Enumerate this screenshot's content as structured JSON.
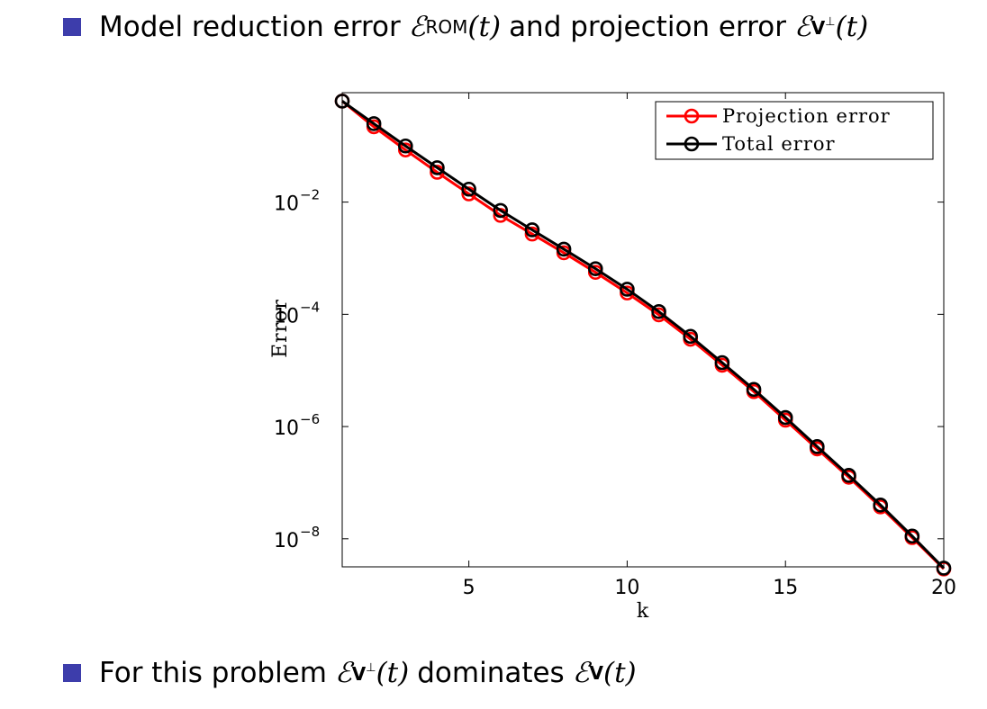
{
  "slide": {
    "bullet1": {
      "text_a": "Model reduction error",
      "sym_a": "ℰ",
      "sub_a": "ROM",
      "arg_a": "(t)",
      "text_b": "and projection error",
      "sym_b": "ℰ",
      "sub_b": "V",
      "sup_b": "⊥",
      "arg_b": "(t)"
    },
    "bullet2": {
      "text_a": "For this problem",
      "sym_a": "ℰ",
      "sub_a": "V",
      "sup_a": "⊥",
      "arg_a": "(t)",
      "text_b": "dominates",
      "sym_b": "ℰ",
      "sub_b": "V",
      "arg_b": "(t)"
    },
    "bullet_color": "#3d3dab"
  },
  "chart_data": {
    "type": "line",
    "title": "",
    "xlabel": "k",
    "ylabel": "Error",
    "y_scale": "log",
    "xlim": [
      1,
      20
    ],
    "ylim_exp": [
      -8.5,
      -0.05
    ],
    "x_ticks": [
      5,
      10,
      15,
      20
    ],
    "y_ticks": [
      {
        "exp": -2,
        "base": "10",
        "sup": "−2"
      },
      {
        "exp": -4,
        "base": "10",
        "sup": "−4"
      },
      {
        "exp": -6,
        "base": "10",
        "sup": "−6"
      },
      {
        "exp": -8,
        "base": "10",
        "sup": "−8"
      }
    ],
    "grid": false,
    "legend_position": "top-right",
    "x": [
      1,
      2,
      3,
      4,
      5,
      6,
      7,
      8,
      9,
      10,
      11,
      12,
      13,
      14,
      15,
      16,
      17,
      18,
      19,
      20
    ],
    "series": [
      {
        "name": "Projection error",
        "color": "#ff0000",
        "marker": "circle",
        "values": [
          0.63,
          0.22,
          0.085,
          0.034,
          0.014,
          0.0058,
          0.0027,
          0.00125,
          0.00056,
          0.00024,
          9.8e-05,
          3.6e-05,
          1.24e-05,
          4.2e-06,
          1.3e-06,
          4e-07,
          1.25e-07,
          3.7e-08,
          1.05e-08,
          2.9e-09
        ]
      },
      {
        "name": "Total error",
        "color": "#000000",
        "marker": "circle",
        "values": [
          0.63,
          0.25,
          0.1,
          0.041,
          0.017,
          0.0071,
          0.0032,
          0.00145,
          0.00065,
          0.00028,
          0.000112,
          4.05e-05,
          1.38e-05,
          4.6e-06,
          1.45e-06,
          4.4e-07,
          1.35e-07,
          4e-08,
          1.12e-08,
          3e-09
        ]
      }
    ]
  }
}
